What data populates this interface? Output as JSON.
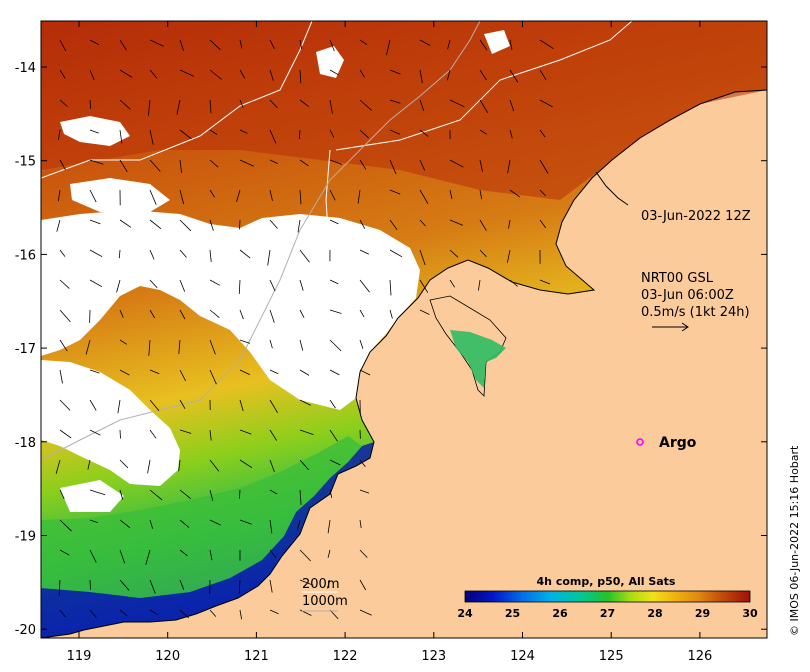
{
  "map": {
    "x_ticks": [
      "119",
      "120",
      "121",
      "122",
      "123",
      "124",
      "125",
      "126"
    ],
    "y_ticks": [
      "-14",
      "-15",
      "-16",
      "-17",
      "-18",
      "-19",
      "-20"
    ],
    "land_color": "#fbcb9b",
    "no_data_color": "#ffffff"
  },
  "annotations": {
    "track_time": "03-Jun-2022 12Z",
    "current_title": "NRT00 GSL",
    "current_time": "03-Jun 06:00Z",
    "current_scale": "0.5m/s (1kt 24h)",
    "argo_label": "Argo",
    "depth_200": "200m",
    "depth_1000": "1000m"
  },
  "colorbar": {
    "title": "4h comp, p50, All Sats",
    "ticks": [
      "24",
      "25",
      "26",
      "27",
      "28",
      "29",
      "30"
    ],
    "min": 24,
    "max": 30
  },
  "copyright": "© IMOS 06-Jun-2022 15:16 Hobart"
}
